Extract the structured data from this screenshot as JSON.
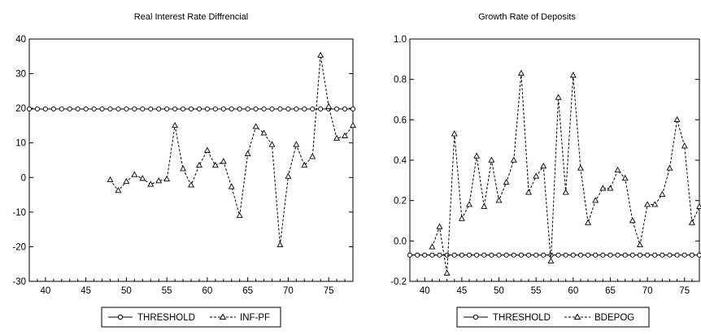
{
  "charts": [
    {
      "title": "Real Interest Rate Diffrencial",
      "xlim": [
        38,
        78
      ],
      "ylim": [
        -30,
        40
      ],
      "yticks": [
        -30,
        -20,
        -10,
        0,
        10,
        20,
        30,
        40
      ],
      "ytick_labels": [
        "-30",
        "-20",
        "-10",
        "0",
        "10",
        "20",
        "30",
        "40"
      ],
      "xticks": [
        40,
        45,
        50,
        55,
        60,
        65,
        70,
        75
      ],
      "xtick_labels": [
        "40",
        "45",
        "50",
        "55",
        "60",
        "65",
        "70",
        "75"
      ],
      "legend": {
        "position": "bottom-center",
        "items": [
          "THRESHOLD",
          "INF-PF"
        ]
      }
    },
    {
      "title": "Growth Rate of Deposits",
      "xlim": [
        38,
        77
      ],
      "ylim": [
        -0.2,
        1.0
      ],
      "yticks": [
        -0.2,
        0.0,
        0.2,
        0.4,
        0.6,
        0.8,
        1.0
      ],
      "ytick_labels": [
        "-0.2",
        "0.0",
        "0.2",
        "0.4",
        "0.6",
        "0.8",
        "1.0"
      ],
      "xticks": [
        40,
        45,
        50,
        55,
        60,
        65,
        70,
        75
      ],
      "xtick_labels": [
        "40",
        "45",
        "50",
        "55",
        "60",
        "65",
        "70",
        "75"
      ],
      "legend": {
        "position": "bottom-center",
        "items": [
          "THRESHOLD",
          "BDEPOG"
        ]
      }
    }
  ],
  "chart_data": [
    {
      "type": "line",
      "title": "Real Interest Rate Diffrencial",
      "xlabel": "",
      "ylabel": "",
      "xlim": [
        38,
        78
      ],
      "ylim": [
        -30,
        40
      ],
      "grid": false,
      "legend_position": "bottom-center",
      "series": [
        {
          "name": "THRESHOLD",
          "style": "solid-circle-markers",
          "color": "#000000",
          "x": [
            38,
            39,
            40,
            41,
            42,
            43,
            44,
            45,
            46,
            47,
            48,
            49,
            50,
            51,
            52,
            53,
            54,
            55,
            56,
            57,
            58,
            59,
            60,
            61,
            62,
            63,
            64,
            65,
            66,
            67,
            68,
            69,
            70,
            71,
            72,
            73,
            74,
            75,
            76,
            77,
            78
          ],
          "y": [
            19.8,
            19.8,
            19.8,
            19.8,
            19.8,
            19.8,
            19.8,
            19.8,
            19.8,
            19.8,
            19.8,
            19.8,
            19.8,
            19.8,
            19.8,
            19.8,
            19.8,
            19.8,
            19.8,
            19.8,
            19.8,
            19.8,
            19.8,
            19.8,
            19.8,
            19.8,
            19.8,
            19.8,
            19.8,
            19.8,
            19.8,
            19.8,
            19.8,
            19.8,
            19.8,
            19.8,
            19.8,
            19.8,
            19.8,
            19.8,
            19.8
          ]
        },
        {
          "name": "INF-PF",
          "style": "dashed-triangle-markers",
          "color": "#000000",
          "x": [
            48,
            49,
            50,
            51,
            52,
            53,
            54,
            55,
            56,
            57,
            58,
            59,
            60,
            61,
            62,
            63,
            64,
            65,
            66,
            67,
            68,
            69,
            70,
            71,
            72,
            73,
            74,
            75,
            76,
            77,
            78
          ],
          "y": [
            -0.7,
            -3.8,
            -1.2,
            0.8,
            -0.3,
            -2.0,
            -1.0,
            -0.5,
            15.0,
            2.5,
            -2.2,
            3.5,
            7.8,
            3.5,
            4.6,
            -2.7,
            -11.0,
            6.8,
            14.7,
            12.8,
            9.5,
            -19.5,
            0.3,
            9.5,
            3.5,
            6.0,
            35.3,
            20.5,
            11.3,
            12.0,
            15.0
          ]
        }
      ]
    },
    {
      "type": "line",
      "title": "Growth Rate of Deposits",
      "xlabel": "",
      "ylabel": "",
      "xlim": [
        38,
        77
      ],
      "ylim": [
        -0.2,
        1.0
      ],
      "grid": false,
      "legend_position": "bottom-center",
      "series": [
        {
          "name": "THRESHOLD",
          "style": "solid-circle-markers",
          "color": "#000000",
          "x": [
            38,
            39,
            40,
            41,
            42,
            43,
            44,
            45,
            46,
            47,
            48,
            49,
            50,
            51,
            52,
            53,
            54,
            55,
            56,
            57,
            58,
            59,
            60,
            61,
            62,
            63,
            64,
            65,
            66,
            67,
            68,
            69,
            70,
            71,
            72,
            73,
            74,
            75,
            76,
            77
          ],
          "y": [
            -0.07,
            -0.07,
            -0.07,
            -0.07,
            -0.07,
            -0.07,
            -0.07,
            -0.07,
            -0.07,
            -0.07,
            -0.07,
            -0.07,
            -0.07,
            -0.07,
            -0.07,
            -0.07,
            -0.07,
            -0.07,
            -0.07,
            -0.07,
            -0.07,
            -0.07,
            -0.07,
            -0.07,
            -0.07,
            -0.07,
            -0.07,
            -0.07,
            -0.07,
            -0.07,
            -0.07,
            -0.07,
            -0.07,
            -0.07,
            -0.07,
            -0.07,
            -0.07,
            -0.07,
            -0.07,
            -0.07
          ]
        },
        {
          "name": "BDEPOG",
          "style": "dashed-triangle-markers",
          "color": "#000000",
          "x": [
            41,
            42,
            43,
            44,
            45,
            46,
            47,
            48,
            49,
            50,
            51,
            52,
            53,
            54,
            55,
            56,
            57,
            58,
            59,
            60,
            61,
            62,
            63,
            64,
            65,
            66,
            67,
            68,
            69,
            70,
            71,
            72,
            73,
            74,
            75,
            76,
            77
          ],
          "y": [
            -0.03,
            0.07,
            -0.16,
            0.53,
            0.11,
            0.18,
            0.42,
            0.17,
            0.4,
            0.2,
            0.29,
            0.4,
            0.83,
            0.24,
            0.32,
            0.37,
            -0.1,
            0.71,
            0.24,
            0.82,
            0.36,
            0.09,
            0.2,
            0.26,
            0.26,
            0.35,
            0.31,
            0.1,
            -0.02,
            0.18,
            0.18,
            0.23,
            0.36,
            0.6,
            0.47,
            0.09,
            0.17
          ]
        }
      ]
    }
  ]
}
